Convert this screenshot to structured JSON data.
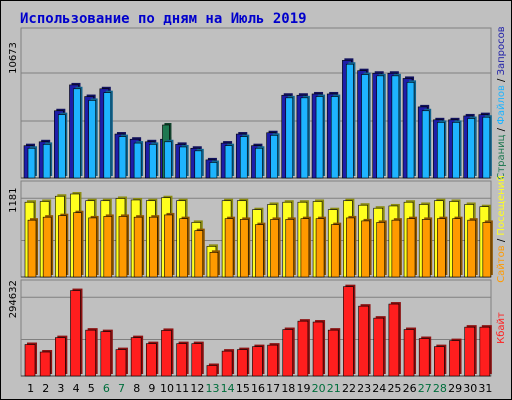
{
  "chart_data": {
    "title": "Использование по дням на Июль 2019",
    "type": "bar",
    "days": [
      "1",
      "2",
      "3",
      "4",
      "5",
      "6",
      "7",
      "8",
      "9",
      "10",
      "11",
      "12",
      "13",
      "14",
      "15",
      "16",
      "17",
      "18",
      "19",
      "20",
      "21",
      "22",
      "23",
      "24",
      "25",
      "26",
      "27",
      "28",
      "29",
      "30",
      "31"
    ],
    "weekend_days": [
      "6",
      "7",
      "13",
      "14",
      "20",
      "21",
      "27",
      "28"
    ],
    "colors": {
      "background": "#c0c0c0",
      "panel": "#c0c0c0",
      "gridline": "#808080",
      "hits": "#1e1ea8",
      "files": "#1eb4ff",
      "pages": "#1e7850",
      "sites": "#ff9a00",
      "visits": "#ffff1e",
      "kbytes": "#ff1e1e",
      "title": "#0000cc",
      "weekday_label": "#000000",
      "weekend_label": "#006e3c"
    },
    "panels": [
      {
        "ylabel": "10673",
        "ylim": [
          0,
          10673
        ],
        "legend": [
          "Запросов",
          "Файлов",
          "Страниц"
        ],
        "series": [
          {
            "name": "Запросов",
            "values": [
              2500,
              2800,
              5200,
              7200,
              6300,
              6900,
              3400,
              3000,
              2800,
              3000,
              2600,
              2300,
              1400,
              2700,
              3400,
              2500,
              3500,
              6400,
              6400,
              6500,
              6500,
              9100,
              8300,
              8100,
              8100,
              7700,
              5500,
              4500,
              4500,
              4800,
              4900
            ]
          },
          {
            "name": "Файлов",
            "values": [
              2300,
              2600,
              4900,
              6900,
              6000,
              6600,
              3200,
              2700,
              2600,
              2800,
              2400,
              2100,
              1200,
              2500,
              3200,
              2300,
              3300,
              6200,
              6200,
              6300,
              6300,
              8800,
              8000,
              7900,
              7900,
              7400,
              5200,
              4300,
              4300,
              4600,
              4700
            ]
          },
          {
            "name": "Страниц",
            "values": [
              0,
              0,
              0,
              0,
              0,
              0,
              0,
              0,
              0,
              4100,
              0,
              0,
              0,
              0,
              0,
              0,
              0,
              0,
              0,
              0,
              0,
              0,
              0,
              0,
              0,
              0,
              0,
              0,
              0,
              0,
              0
            ]
          }
        ]
      },
      {
        "ylabel": "1181",
        "ylim": [
          0,
          1181
        ],
        "legend": [
          "Посещений",
          "Сайтов"
        ],
        "series": [
          {
            "name": "Посещений",
            "values": [
              1000,
              1010,
              1080,
              1110,
              1020,
              1020,
              1050,
              1030,
              1020,
              1060,
              1020,
              730,
              410,
              1020,
              1020,
              900,
              970,
              1000,
              1000,
              1010,
              900,
              1020,
              960,
              920,
              950,
              1000,
              970,
              1020,
              1010,
              970,
              940
            ]
          },
          {
            "name": "Сайтов",
            "values": [
              760,
              800,
              820,
              860,
              790,
              810,
              810,
              800,
              800,
              830,
              780,
              620,
              330,
              780,
              770,
              700,
              770,
              770,
              780,
              780,
              700,
              790,
              750,
              730,
              760,
              780,
              770,
              780,
              780,
              760,
              730
            ]
          }
        ]
      },
      {
        "ylabel": "294632",
        "ylim": [
          0,
          294632
        ],
        "legend": [
          "Кбайт"
        ],
        "series": [
          {
            "name": "Кбайт",
            "values": [
              105000,
              80000,
              128000,
              285000,
              153000,
              148000,
              88000,
              128000,
              108000,
              152000,
              108000,
              108000,
              35000,
              83000,
              88000,
              98000,
              103000,
              155000,
              183000,
              180000,
              153000,
              298000,
              233000,
              193000,
              240000,
              155000,
              125000,
              98000,
              118000,
              163000,
              163000
            ]
          }
        ]
      }
    ]
  }
}
